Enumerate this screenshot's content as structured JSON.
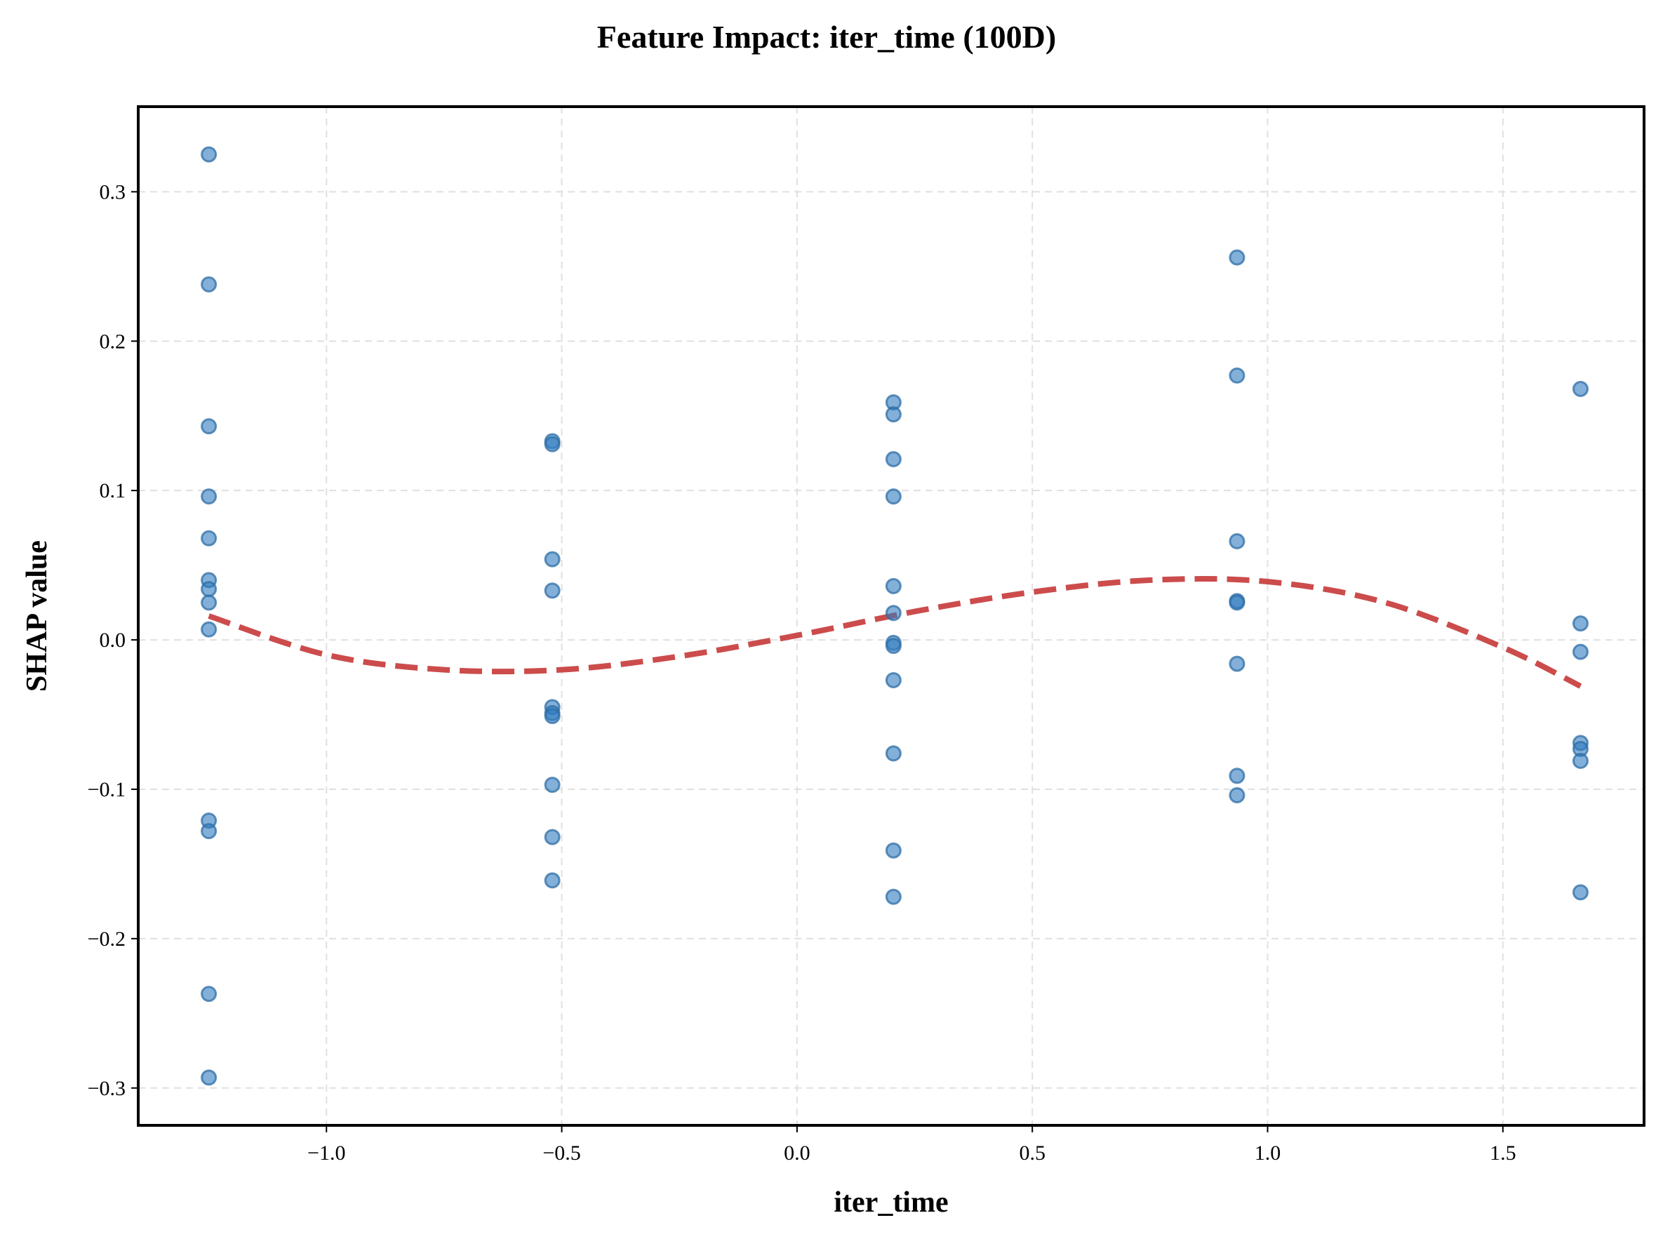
{
  "chart_data": {
    "type": "scatter",
    "title": "Feature Impact: iter_time (100D)",
    "xlabel": "iter_time",
    "ylabel": "SHAP value",
    "xlim": [
      -1.4,
      1.8
    ],
    "ylim": [
      -0.325,
      0.357
    ],
    "xticks": [
      -1.0,
      -0.5,
      0.0,
      0.5,
      1.0,
      1.5
    ],
    "xtick_labels": [
      "−1.0",
      "−0.5",
      "0.0",
      "0.5",
      "1.0",
      "1.5"
    ],
    "yticks": [
      -0.3,
      -0.2,
      -0.1,
      0.0,
      0.1,
      0.2,
      0.3
    ],
    "ytick_labels": [
      "−0.3",
      "−0.2",
      "−0.1",
      "0.0",
      "0.1",
      "0.2",
      "0.3"
    ],
    "grid": true,
    "point_color": "#1f77b4",
    "trend_color": "#cc4c4c",
    "points": [
      {
        "x": -1.25,
        "y": 0.325
      },
      {
        "x": -1.25,
        "y": 0.238
      },
      {
        "x": -1.25,
        "y": 0.143
      },
      {
        "x": -1.25,
        "y": 0.096
      },
      {
        "x": -1.25,
        "y": 0.068
      },
      {
        "x": -1.25,
        "y": 0.04
      },
      {
        "x": -1.25,
        "y": 0.034
      },
      {
        "x": -1.25,
        "y": 0.025
      },
      {
        "x": -1.25,
        "y": 0.007
      },
      {
        "x": -1.25,
        "y": -0.121
      },
      {
        "x": -1.25,
        "y": -0.128
      },
      {
        "x": -1.25,
        "y": -0.237
      },
      {
        "x": -1.25,
        "y": -0.293
      },
      {
        "x": -0.52,
        "y": 0.133
      },
      {
        "x": -0.52,
        "y": 0.131
      },
      {
        "x": -0.52,
        "y": 0.054
      },
      {
        "x": -0.52,
        "y": 0.033
      },
      {
        "x": -0.52,
        "y": -0.045
      },
      {
        "x": -0.52,
        "y": -0.049
      },
      {
        "x": -0.52,
        "y": -0.051
      },
      {
        "x": -0.52,
        "y": -0.097
      },
      {
        "x": -0.52,
        "y": -0.132
      },
      {
        "x": -0.52,
        "y": -0.161
      },
      {
        "x": 0.205,
        "y": 0.159
      },
      {
        "x": 0.205,
        "y": 0.151
      },
      {
        "x": 0.205,
        "y": 0.121
      },
      {
        "x": 0.205,
        "y": 0.096
      },
      {
        "x": 0.205,
        "y": 0.036
      },
      {
        "x": 0.205,
        "y": 0.018
      },
      {
        "x": 0.205,
        "y": -0.002
      },
      {
        "x": 0.205,
        "y": -0.004
      },
      {
        "x": 0.205,
        "y": -0.027
      },
      {
        "x": 0.205,
        "y": -0.076
      },
      {
        "x": 0.205,
        "y": -0.141
      },
      {
        "x": 0.205,
        "y": -0.172
      },
      {
        "x": 0.935,
        "y": 0.256
      },
      {
        "x": 0.935,
        "y": 0.177
      },
      {
        "x": 0.935,
        "y": 0.066
      },
      {
        "x": 0.935,
        "y": 0.026
      },
      {
        "x": 0.935,
        "y": 0.025
      },
      {
        "x": 0.935,
        "y": -0.016
      },
      {
        "x": 0.935,
        "y": -0.091
      },
      {
        "x": 0.935,
        "y": -0.104
      },
      {
        "x": 1.665,
        "y": 0.168
      },
      {
        "x": 1.665,
        "y": 0.011
      },
      {
        "x": 1.665,
        "y": -0.008
      },
      {
        "x": 1.665,
        "y": -0.069
      },
      {
        "x": 1.665,
        "y": -0.073
      },
      {
        "x": 1.665,
        "y": -0.081
      },
      {
        "x": 1.665,
        "y": -0.169
      }
    ],
    "trend": {
      "x": [
        -1.25,
        -1.0,
        -0.75,
        -0.5,
        -0.25,
        0.0,
        0.25,
        0.5,
        0.75,
        1.0,
        1.25,
        1.5,
        1.665
      ],
      "y": [
        0.016,
        -0.01,
        -0.02,
        -0.02,
        -0.011,
        0.003,
        0.019,
        0.032,
        0.04,
        0.039,
        0.025,
        -0.005,
        -0.031
      ]
    }
  }
}
